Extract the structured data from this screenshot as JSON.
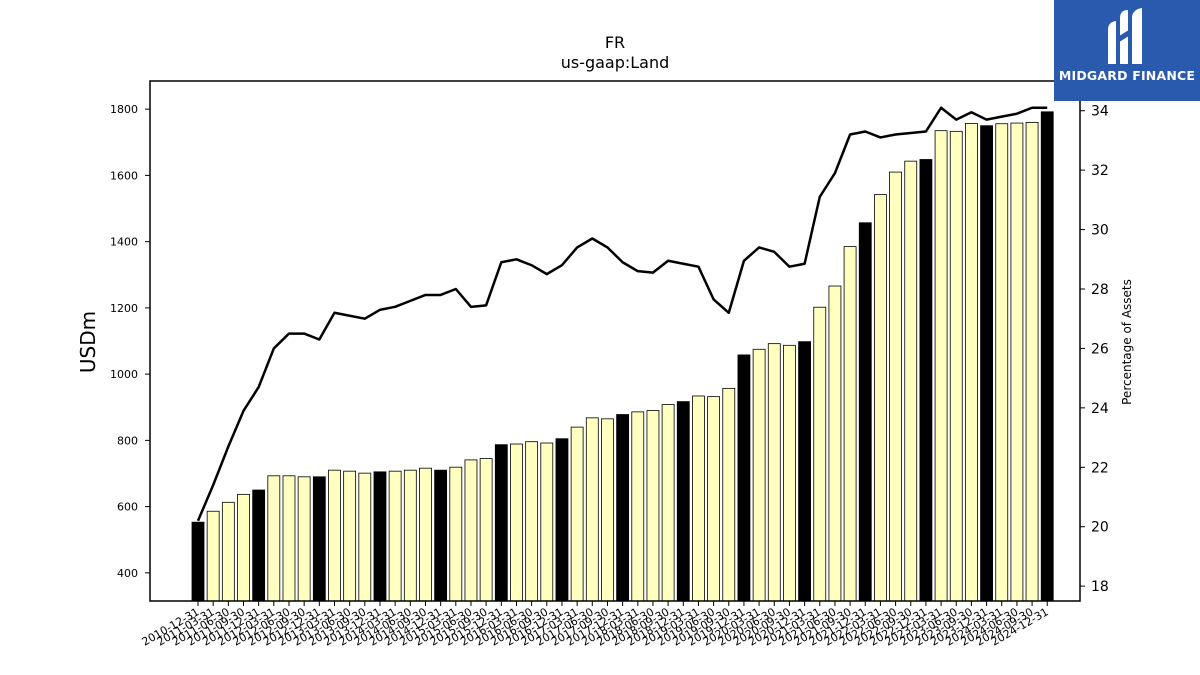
{
  "brand": {
    "name": "MIDGARD FINANCE",
    "icon": "midgard-logo-icon",
    "bg_color": "#2a5aad"
  },
  "chart_data": {
    "type": "bar",
    "title": "FR",
    "subtitle": "us-gaap:Land",
    "ylabel": "USDm",
    "ylabel_right": "Percentage of Assets",
    "ylim": [
      315,
      1885
    ],
    "ylim_right": [
      17.5,
      35.0
    ],
    "yticks": [
      400,
      600,
      800,
      1000,
      1200,
      1400,
      1600,
      1800
    ],
    "yticks_right": [
      18,
      20,
      22,
      24,
      26,
      28,
      30,
      32,
      34
    ],
    "grid": false,
    "colors": {
      "bar_fy": "#000000",
      "bar_q": "#ffffc0",
      "bar_edge": "#000000",
      "line": "#000000"
    },
    "categories": [
      "2010-12-31",
      "2011-03-31",
      "2011-06-30",
      "2011-09-30",
      "2011-12-31",
      "2012-03-31",
      "2012-06-30",
      "2012-09-30",
      "2012-12-31",
      "2013-03-31",
      "2013-06-30",
      "2013-09-30",
      "2013-12-31",
      "2014-03-31",
      "2014-06-30",
      "2014-09-30",
      "2014-12-31",
      "2015-03-31",
      "2015-06-30",
      "2015-09-30",
      "2015-12-31",
      "2016-03-31",
      "2016-06-30",
      "2016-09-30",
      "2016-12-31",
      "2017-03-31",
      "2017-06-30",
      "2017-09-30",
      "2017-12-31",
      "2018-03-31",
      "2018-06-30",
      "2018-09-30",
      "2018-12-31",
      "2019-03-31",
      "2019-06-30",
      "2019-09-30",
      "2019-12-31",
      "2020-03-31",
      "2020-06-30",
      "2020-09-30",
      "2020-12-31",
      "2021-03-31",
      "2021-06-30",
      "2021-09-30",
      "2021-12-31",
      "2022-03-31",
      "2022-06-30",
      "2022-09-30",
      "2022-12-31",
      "2023-03-31",
      "2023-06-30",
      "2023-09-30",
      "2023-12-31",
      "2024-03-31",
      "2024-06-30",
      "2024-09-30",
      "2024-12-31"
    ],
    "year_end": [
      true,
      false,
      false,
      false,
      true,
      false,
      false,
      false,
      true,
      false,
      false,
      false,
      true,
      false,
      false,
      false,
      true,
      false,
      false,
      false,
      true,
      false,
      false,
      false,
      true,
      false,
      false,
      false,
      true,
      false,
      false,
      false,
      true,
      false,
      false,
      false,
      true,
      false,
      false,
      false,
      true,
      false,
      false,
      false,
      true,
      false,
      false,
      false,
      true,
      false,
      false,
      false,
      true,
      false,
      false,
      false,
      true
    ],
    "series": [
      {
        "axis": "left",
        "kind": "bar",
        "values": [
          553,
          586,
          613,
          637,
          650,
          693,
          693,
          690,
          690,
          710,
          707,
          701,
          705,
          707,
          710,
          716,
          710,
          719,
          741,
          745,
          787,
          789,
          796,
          792,
          805,
          840,
          868,
          865,
          878,
          886,
          890,
          908,
          917,
          934,
          932,
          957,
          1058,
          1075,
          1092,
          1087,
          1098,
          1202,
          1266,
          1385,
          1457,
          1542,
          1610,
          1643,
          1648,
          1735,
          1733,
          1757,
          1750,
          1756,
          1758,
          1760,
          1792
        ]
      },
      {
        "axis": "right",
        "kind": "line",
        "values": [
          20.2,
          21.4,
          22.7,
          23.9,
          24.7,
          26.0,
          26.5,
          26.5,
          26.3,
          27.2,
          27.1,
          27.0,
          27.3,
          27.4,
          27.6,
          27.8,
          27.8,
          28.0,
          27.4,
          27.45,
          28.9,
          29.0,
          28.8,
          28.5,
          28.8,
          29.4,
          29.7,
          29.4,
          28.9,
          28.6,
          28.55,
          28.95,
          28.85,
          28.75,
          27.65,
          27.2,
          28.95,
          29.4,
          29.25,
          28.75,
          28.85,
          31.1,
          31.9,
          33.2,
          33.3,
          33.1,
          33.2,
          33.25,
          33.3,
          34.1,
          33.7,
          33.95,
          33.7,
          33.8,
          33.9,
          34.1,
          34.1
        ]
      }
    ]
  }
}
